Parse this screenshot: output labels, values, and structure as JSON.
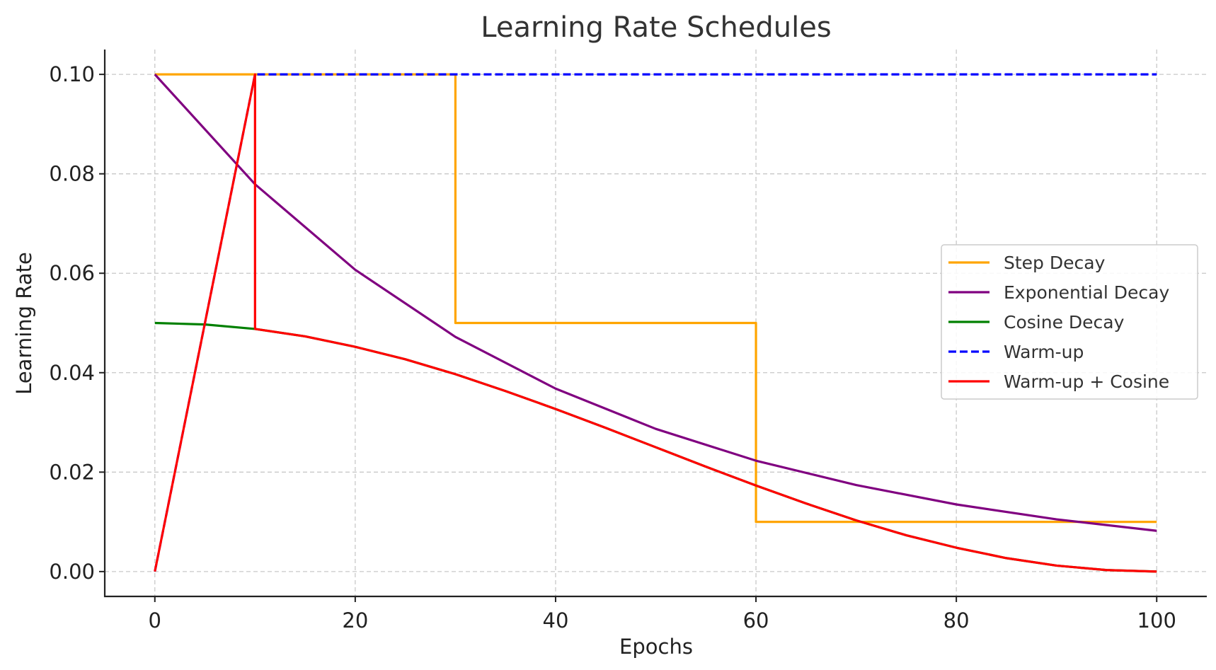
{
  "chart_data": {
    "type": "line",
    "title": "Learning Rate Schedules",
    "xlabel": "Epochs",
    "ylabel": "Learning Rate",
    "xlim": [
      -5,
      105
    ],
    "ylim": [
      -0.005,
      0.105
    ],
    "xticks": [
      0,
      20,
      40,
      60,
      80,
      100
    ],
    "yticks": [
      0.0,
      0.02,
      0.04,
      0.06,
      0.08,
      0.1
    ],
    "xtick_labels": [
      "0",
      "20",
      "40",
      "60",
      "80",
      "100"
    ],
    "ytick_labels": [
      "0.00",
      "0.02",
      "0.04",
      "0.06",
      "0.08",
      "0.10"
    ],
    "grid": true,
    "legend_position": "center-right",
    "series": [
      {
        "name": "Step Decay",
        "color": "#FFA500",
        "dash": "solid",
        "x": [
          0,
          30,
          30,
          60,
          60,
          100
        ],
        "y": [
          0.1,
          0.1,
          0.05,
          0.05,
          0.01,
          0.01
        ]
      },
      {
        "name": "Exponential Decay",
        "color": "#800080",
        "dash": "solid",
        "x": [
          0,
          10,
          20,
          30,
          40,
          50,
          60,
          70,
          80,
          90,
          100
        ],
        "y": [
          0.1,
          0.0779,
          0.0607,
          0.0472,
          0.0368,
          0.0287,
          0.0223,
          0.0174,
          0.0135,
          0.0105,
          0.0082
        ]
      },
      {
        "name": "Cosine Decay",
        "color": "#008000",
        "dash": "solid",
        "x": [
          0,
          5,
          10,
          15,
          20,
          25,
          30,
          35,
          40,
          45,
          50,
          55,
          60,
          65,
          70,
          75,
          80,
          85,
          90,
          95,
          100
        ],
        "y": [
          0.05,
          0.0497,
          0.0488,
          0.0473,
          0.0452,
          0.0427,
          0.0397,
          0.0363,
          0.0327,
          0.0289,
          0.025,
          0.0211,
          0.0173,
          0.0137,
          0.0103,
          0.0073,
          0.0048,
          0.0027,
          0.0012,
          0.0003,
          0.0
        ]
      },
      {
        "name": "Warm-up",
        "color": "#0000FF",
        "dash": "dashed",
        "x": [
          0,
          10,
          100
        ],
        "y": [
          0.0,
          0.1,
          0.1
        ]
      },
      {
        "name": "Warm-up + Cosine",
        "color": "#FF0000",
        "dash": "solid",
        "x": [
          0,
          10,
          10,
          15,
          20,
          25,
          30,
          35,
          40,
          45,
          50,
          55,
          60,
          65,
          70,
          75,
          80,
          85,
          90,
          95,
          100
        ],
        "y": [
          0.0,
          0.1,
          0.0488,
          0.0473,
          0.0452,
          0.0427,
          0.0397,
          0.0363,
          0.0327,
          0.0289,
          0.025,
          0.0211,
          0.0173,
          0.0137,
          0.0103,
          0.0073,
          0.0048,
          0.0027,
          0.0012,
          0.0003,
          0.0
        ]
      }
    ]
  }
}
